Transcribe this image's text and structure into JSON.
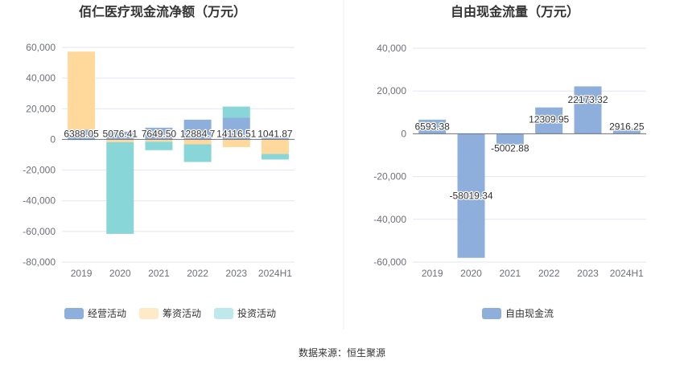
{
  "source_label": "数据来源：恒生聚源",
  "chart_data": [
    {
      "type": "bar",
      "stacked": true,
      "title": "佰仁医疗现金流净额（万元）",
      "categories": [
        "2019",
        "2020",
        "2021",
        "2022",
        "2023",
        "2024H1"
      ],
      "ylim": [
        -80000,
        60000
      ],
      "yticks": [
        60000,
        40000,
        20000,
        0,
        -20000,
        -40000,
        -60000,
        -80000
      ],
      "ytick_labels": [
        "60,000",
        "40,000",
        "20,000",
        "0",
        "-20,000",
        "-40,000",
        "-60,000",
        "-80,000"
      ],
      "series": [
        {
          "name": "经营活动",
          "color": "#8eaedc",
          "values": [
            6388.05,
            5076.41,
            7649.5,
            12884.7,
            14116.51,
            1041.87
          ]
        },
        {
          "name": "筹资活动",
          "color": "#ffd99b",
          "values": [
            50900,
            -1800,
            -1500,
            -3200,
            -5000,
            -9500
          ]
        },
        {
          "name": "投资活动",
          "color": "#89d6d8",
          "values": [
            -400,
            -59800,
            -5500,
            -11500,
            7300,
            -3600
          ]
        }
      ],
      "data_labels": [
        "6388.05",
        "5076.41",
        "7649.50",
        "12884.7",
        "14116.51",
        "1041.87"
      ],
      "legend": [
        "经营活动",
        "筹资活动",
        "投资活动"
      ]
    },
    {
      "type": "bar",
      "title": "自由现金流量（万元）",
      "categories": [
        "2019",
        "2020",
        "2021",
        "2022",
        "2023",
        "2024H1"
      ],
      "ylim": [
        -60000,
        40000
      ],
      "yticks": [
        40000,
        20000,
        0,
        -20000,
        -40000,
        -60000
      ],
      "ytick_labels": [
        "40,000",
        "20,000",
        "0",
        "-20,000",
        "-40,000",
        "-60,000"
      ],
      "series": [
        {
          "name": "自由现金流",
          "color": "#8eaedc",
          "values": [
            6593.38,
            -58019.34,
            -5002.88,
            12309.95,
            22173.32,
            2916.25
          ]
        }
      ],
      "data_labels": [
        "6593.38",
        "-58019.34",
        "-5002.88",
        "12309.95",
        "22173.32",
        "2916.25"
      ],
      "legend": [
        "自由现金流"
      ]
    }
  ]
}
